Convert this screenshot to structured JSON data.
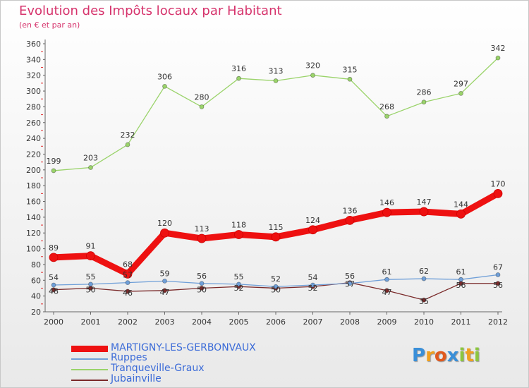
{
  "header": {
    "title": "Evolution des Impôts locaux par Habitant",
    "subtitle": "(en € et par an)"
  },
  "chart_data": {
    "type": "line",
    "title": "Evolution des Impôts locaux par Habitant",
    "subtitle": "(en € et par an)",
    "xlabel": "",
    "ylabel": "",
    "x": [
      "2000",
      "2001",
      "2002",
      "2003",
      "2004",
      "2005",
      "2006",
      "2007",
      "2008",
      "2009",
      "2010",
      "2011",
      "2012"
    ],
    "ylim": [
      20,
      360
    ],
    "yticks": [
      20,
      40,
      60,
      80,
      100,
      120,
      140,
      160,
      180,
      200,
      220,
      240,
      260,
      280,
      300,
      320,
      340,
      360
    ],
    "grid": false,
    "legend_position": "bottom-left",
    "series": [
      {
        "name": "MARTIGNY-LES-GERBONVAUX",
        "color": "#ee1111",
        "values": [
          89,
          91,
          68,
          120,
          113,
          118,
          115,
          124,
          136,
          146,
          147,
          144,
          170
        ]
      },
      {
        "name": "Ruppes",
        "color": "#6f9fd8",
        "values": [
          54,
          55,
          57,
          59,
          56,
          55,
          52,
          54,
          56,
          61,
          62,
          61,
          67
        ]
      },
      {
        "name": "Tranqueville-Graux",
        "color": "#9ad36a",
        "values": [
          199,
          203,
          232,
          306,
          280,
          316,
          313,
          320,
          315,
          268,
          286,
          297,
          342
        ]
      },
      {
        "name": "Jubainville",
        "color": "#7a2a2a",
        "values": [
          48,
          50,
          46,
          47,
          50,
          52,
          50,
          52,
          57,
          47,
          35,
          56,
          56
        ]
      }
    ]
  },
  "logo": {
    "text": "Proxiti",
    "letters": [
      "P",
      "r",
      "o",
      "x",
      "i",
      "t",
      "i"
    ],
    "colors": [
      "#3a8fd8",
      "#f0a020",
      "#e05a1e",
      "#3a8fd8",
      "#8cc63f",
      "#f0a020",
      "#8cc63f"
    ]
  }
}
